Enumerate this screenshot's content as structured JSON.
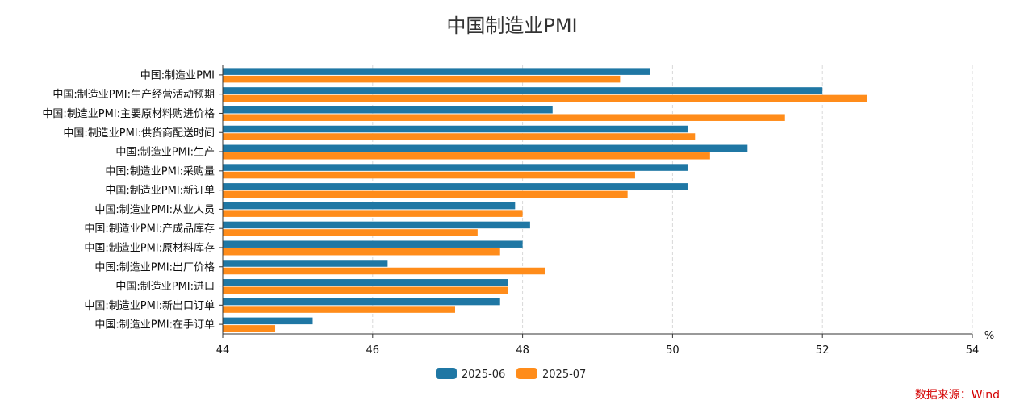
{
  "chart_data": {
    "type": "bar",
    "orientation": "horizontal",
    "title": "中国制造业PMI",
    "unit": "%",
    "xlim": [
      44,
      54
    ],
    "xticks": [
      44,
      46,
      48,
      50,
      52,
      54
    ],
    "grid": true,
    "legend_position": "bottom",
    "categories": [
      "中国:制造业PMI",
      "中国:制造业PMI:生产经营活动预期",
      "中国:制造业PMI:主要原材料购进价格",
      "中国:制造业PMI:供货商配送时间",
      "中国:制造业PMI:生产",
      "中国:制造业PMI:采购量",
      "中国:制造业PMI:新订单",
      "中国:制造业PMI:从业人员",
      "中国:制造业PMI:产成品库存",
      "中国:制造业PMI:原材料库存",
      "中国:制造业PMI:出厂价格",
      "中国:制造业PMI:进口",
      "中国:制造业PMI:新出口订单",
      "中国:制造业PMI:在手订单"
    ],
    "series": [
      {
        "name": "2025-06",
        "color": "#1f77a4",
        "values": [
          49.7,
          52.0,
          48.4,
          50.2,
          51.0,
          50.2,
          50.2,
          47.9,
          48.1,
          48.0,
          46.2,
          47.8,
          47.7,
          45.2
        ]
      },
      {
        "name": "2025-07",
        "color": "#ff8c1a",
        "values": [
          49.3,
          52.6,
          51.5,
          50.3,
          50.5,
          49.5,
          49.4,
          48.0,
          47.4,
          47.7,
          48.3,
          47.8,
          47.1,
          44.7
        ]
      }
    ],
    "source_note": "数据来源：Wind"
  }
}
